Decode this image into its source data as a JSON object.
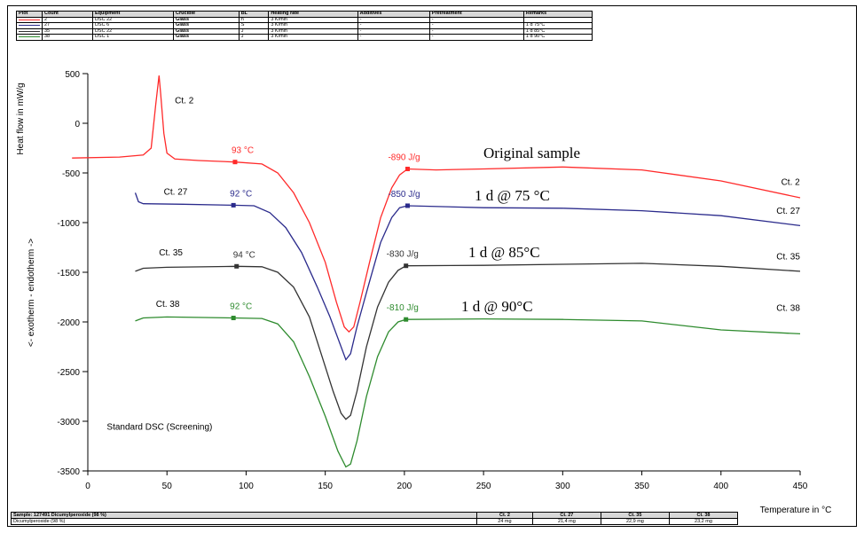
{
  "legend_table": {
    "headers": [
      "Plot",
      "Count",
      "Equipment",
      "Crucible",
      "BL",
      "Heating rate",
      "Additives",
      "Pretreatment",
      "Remarks"
    ],
    "rows": [
      {
        "color": "#ff2a2a",
        "count": "2",
        "equipment": "DSC 22",
        "crucible": "Glass",
        "bl": "n",
        "heating_rate": "3 K/min",
        "additives": "-",
        "pretreatment": "-",
        "remarks": ""
      },
      {
        "color": "#2b2b8c",
        "count": "27",
        "equipment": "DSC 6",
        "crucible": "Glass",
        "bl": "S",
        "heating_rate": "3 K/min",
        "additives": "-",
        "pretreatment": "-",
        "remarks": "1 d 75°C"
      },
      {
        "color": "#333333",
        "count": "35",
        "equipment": "DSC 22",
        "crucible": "Glass",
        "bl": "J",
        "heating_rate": "3 K/min",
        "additives": "-",
        "pretreatment": "-",
        "remarks": "1 d 85°C"
      },
      {
        "color": "#2e8b2e",
        "count": "38",
        "equipment": "DSC 1",
        "crucible": "Glass",
        "bl": "J",
        "heating_rate": "3 K/min",
        "additives": "-",
        "pretreatment": "-",
        "remarks": "1 d 90°C"
      }
    ]
  },
  "sample_table": {
    "headers": [
      "Sample: 127491 Dicumylperoxide (98 %)",
      "Ct. 2",
      "Ct. 27",
      "Ct. 35",
      "Ct. 38"
    ],
    "row": [
      "Dicumylperoxide (98 %)",
      "24 mg",
      "21,4 mg",
      "22,9 mg",
      "23,2 mg"
    ]
  },
  "chart_data": {
    "type": "line",
    "xlabel": "Temperature in °C",
    "ylabel": "<- exotherm - endotherm ->",
    "ylabel2": "Heat flow in mW/g",
    "xlim": [
      0,
      450
    ],
    "ylim": [
      -3500,
      500
    ],
    "xticks": [
      0,
      50,
      100,
      150,
      200,
      250,
      300,
      350,
      400,
      450
    ],
    "yticks": [
      500,
      0,
      -500,
      -1000,
      -1500,
      -2000,
      -2500,
      -3000,
      -3500
    ],
    "annotation": "Standard DSC (Screening)",
    "series": [
      {
        "name": "Ct. 2",
        "color": "#ff2a2a",
        "note": "Original sample",
        "onset_label": "93 °C",
        "onset": [
          93,
          -390
        ],
        "enthalpy_label": "-890 J/g",
        "end": [
          202,
          -460
        ],
        "points": [
          [
            -10,
            -350
          ],
          [
            20,
            -340
          ],
          [
            35,
            -320
          ],
          [
            40,
            -250
          ],
          [
            43,
            200
          ],
          [
            45,
            480
          ],
          [
            46,
            300
          ],
          [
            48,
            -100
          ],
          [
            50,
            -300
          ],
          [
            55,
            -360
          ],
          [
            70,
            -375
          ],
          [
            93,
            -390
          ],
          [
            110,
            -410
          ],
          [
            120,
            -500
          ],
          [
            130,
            -700
          ],
          [
            140,
            -1000
          ],
          [
            150,
            -1400
          ],
          [
            157,
            -1800
          ],
          [
            162,
            -2050
          ],
          [
            165,
            -2100
          ],
          [
            168,
            -2050
          ],
          [
            172,
            -1800
          ],
          [
            178,
            -1400
          ],
          [
            185,
            -950
          ],
          [
            192,
            -650
          ],
          [
            197,
            -520
          ],
          [
            202,
            -460
          ],
          [
            220,
            -470
          ],
          [
            250,
            -460
          ],
          [
            300,
            -440
          ],
          [
            350,
            -470
          ],
          [
            400,
            -580
          ],
          [
            450,
            -750
          ]
        ]
      },
      {
        "name": "Ct. 27",
        "color": "#2b2b8c",
        "note": "1 d @ 75 °C",
        "onset_label": "92 °C",
        "onset": [
          92,
          -825
        ],
        "enthalpy_label": "-850 J/g",
        "end": [
          202,
          -830
        ],
        "points": [
          [
            30,
            -700
          ],
          [
            32,
            -790
          ],
          [
            35,
            -810
          ],
          [
            60,
            -815
          ],
          [
            92,
            -825
          ],
          [
            105,
            -830
          ],
          [
            115,
            -900
          ],
          [
            125,
            -1050
          ],
          [
            135,
            -1300
          ],
          [
            145,
            -1650
          ],
          [
            153,
            -1950
          ],
          [
            160,
            -2250
          ],
          [
            163,
            -2380
          ],
          [
            166,
            -2320
          ],
          [
            170,
            -2050
          ],
          [
            177,
            -1650
          ],
          [
            185,
            -1200
          ],
          [
            192,
            -950
          ],
          [
            197,
            -850
          ],
          [
            202,
            -830
          ],
          [
            250,
            -850
          ],
          [
            300,
            -855
          ],
          [
            350,
            -880
          ],
          [
            400,
            -930
          ],
          [
            450,
            -1030
          ]
        ]
      },
      {
        "name": "Ct. 35",
        "color": "#333333",
        "note": "1 d @ 85°C",
        "onset_label": "94 °C",
        "onset": [
          94,
          -1440
        ],
        "enthalpy_label": "-830 J/g",
        "end": [
          201,
          -1435
        ],
        "points": [
          [
            30,
            -1490
          ],
          [
            35,
            -1460
          ],
          [
            50,
            -1450
          ],
          [
            94,
            -1440
          ],
          [
            110,
            -1445
          ],
          [
            120,
            -1500
          ],
          [
            130,
            -1650
          ],
          [
            140,
            -1950
          ],
          [
            148,
            -2350
          ],
          [
            155,
            -2700
          ],
          [
            160,
            -2920
          ],
          [
            163,
            -2980
          ],
          [
            166,
            -2940
          ],
          [
            170,
            -2700
          ],
          [
            176,
            -2250
          ],
          [
            183,
            -1850
          ],
          [
            190,
            -1600
          ],
          [
            196,
            -1480
          ],
          [
            201,
            -1435
          ],
          [
            250,
            -1430
          ],
          [
            300,
            -1420
          ],
          [
            350,
            -1410
          ],
          [
            400,
            -1440
          ],
          [
            450,
            -1490
          ]
        ]
      },
      {
        "name": "Ct. 38",
        "color": "#2e8b2e",
        "note": "1 d @ 90°C",
        "onset_label": "92 °C",
        "onset": [
          92,
          -1960
        ],
        "enthalpy_label": "-810 J/g",
        "end": [
          201,
          -1975
        ],
        "points": [
          [
            30,
            -1990
          ],
          [
            35,
            -1960
          ],
          [
            50,
            -1950
          ],
          [
            92,
            -1960
          ],
          [
            110,
            -1965
          ],
          [
            120,
            -2020
          ],
          [
            130,
            -2200
          ],
          [
            140,
            -2550
          ],
          [
            150,
            -2950
          ],
          [
            158,
            -3300
          ],
          [
            163,
            -3460
          ],
          [
            166,
            -3430
          ],
          [
            170,
            -3200
          ],
          [
            176,
            -2750
          ],
          [
            183,
            -2350
          ],
          [
            190,
            -2100
          ],
          [
            196,
            -2000
          ],
          [
            201,
            -1975
          ],
          [
            250,
            -1970
          ],
          [
            300,
            -1975
          ],
          [
            350,
            -1990
          ],
          [
            400,
            -2080
          ],
          [
            450,
            -2120
          ]
        ]
      }
    ]
  }
}
